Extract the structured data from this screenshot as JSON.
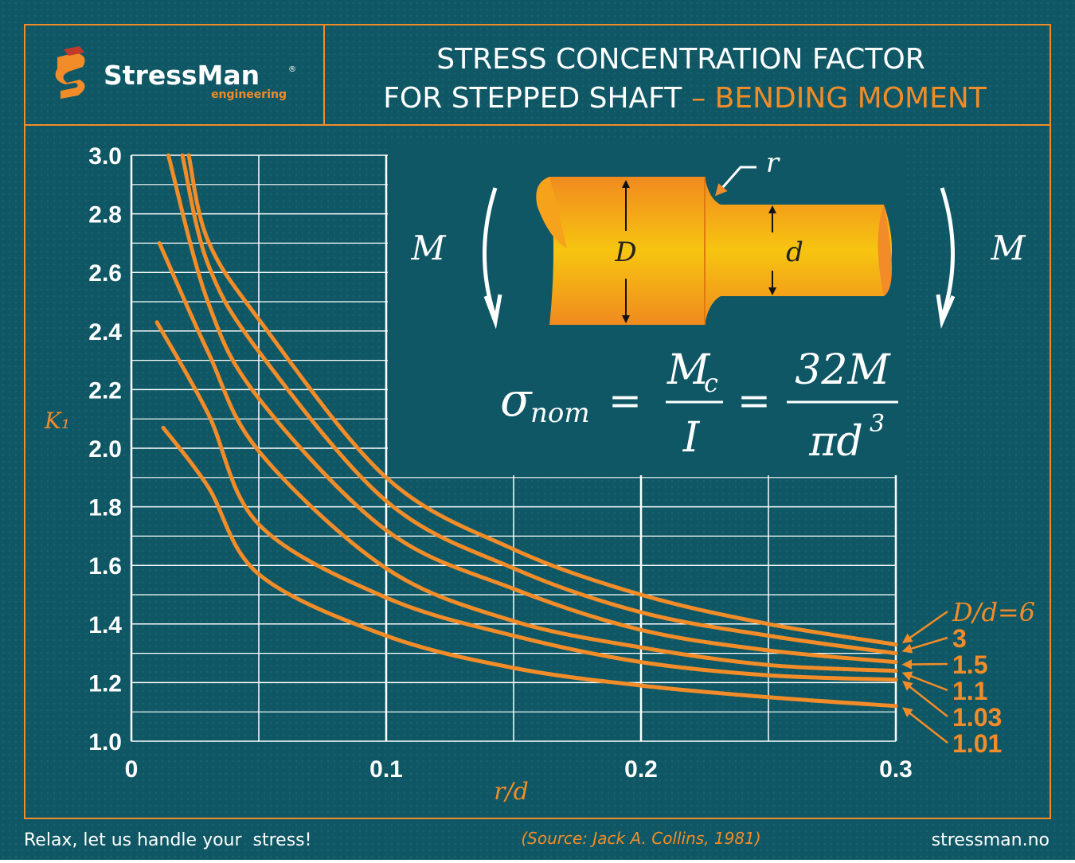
{
  "header": {
    "brand": "StressMan",
    "registered": "®",
    "brand_sub": "engineering",
    "title_line1": "STRESS CONCENTRATION FACTOR",
    "title_line2": "FOR STEPPED SHAFT",
    "title_highlight": "– BENDING MOMENT"
  },
  "diagram": {
    "moment_left": "M",
    "moment_right": "M",
    "big_diameter": "D",
    "small_diameter": "d",
    "radius": "r"
  },
  "formula": {
    "lhs": "σ",
    "lhs_sub": "nom",
    "equals": "=",
    "frac1_num": "M",
    "frac1_num_sub": "c",
    "frac1_den": "I",
    "frac2_num": "32M",
    "frac2_den": "πd",
    "frac2_den_sup": "3"
  },
  "chart_data": {
    "type": "line",
    "xlabel": "r/d",
    "ylabel": "K₁",
    "xlim": [
      0,
      0.3
    ],
    "ylim": [
      1.0,
      3.0
    ],
    "xticks": [
      0,
      0.1,
      0.2,
      0.3
    ],
    "yticks": [
      {
        "value": 1.0,
        "label": "1.0"
      },
      1.2,
      1.4,
      1.6,
      1.8,
      {
        "value": 2.0,
        "label": "2.0"
      },
      2.2,
      2.4,
      2.6,
      2.8,
      {
        "value": 3.0,
        "label": "3.0"
      }
    ],
    "x_minor_ticks": [
      0.05,
      0.15,
      0.25
    ],
    "y_minor_ticks": [
      1.1,
      1.3,
      1.5,
      1.7,
      1.9,
      2.1,
      2.3,
      2.5,
      2.7,
      2.9
    ],
    "grid": true,
    "color": "#f28c28",
    "series": [
      {
        "name": "D/d=6",
        "x": [
          0.0225,
          0.03,
          0.05,
          0.1,
          0.15,
          0.2,
          0.25,
          0.3
        ],
        "values": [
          3.0,
          2.71,
          2.44,
          1.9,
          1.655,
          1.5,
          1.4,
          1.33
        ]
      },
      {
        "name": "3",
        "x": [
          0.02,
          0.03,
          0.05,
          0.1,
          0.15,
          0.2,
          0.25,
          0.3
        ],
        "values": [
          3.0,
          2.63,
          2.33,
          1.82,
          1.59,
          1.44,
          1.36,
          1.3
        ]
      },
      {
        "name": "1.5",
        "x": [
          0.0145,
          0.03,
          0.05,
          0.1,
          0.15,
          0.2,
          0.25,
          0.3
        ],
        "values": [
          3.0,
          2.5,
          2.17,
          1.72,
          1.52,
          1.38,
          1.31,
          1.27
        ]
      },
      {
        "name": "1.1",
        "x": [
          0.011,
          0.03,
          0.05,
          0.1,
          0.15,
          0.2,
          0.25,
          0.3
        ],
        "values": [
          2.7,
          2.33,
          1.99,
          1.59,
          1.41,
          1.32,
          1.26,
          1.24
        ]
      },
      {
        "name": "1.03",
        "x": [
          0.01,
          0.03,
          0.05,
          0.1,
          0.15,
          0.2,
          0.25,
          0.3
        ],
        "values": [
          2.43,
          2.12,
          1.74,
          1.49,
          1.36,
          1.27,
          1.225,
          1.21
        ]
      },
      {
        "name": "1.01",
        "x": [
          0.0125,
          0.03,
          0.05,
          0.1,
          0.15,
          0.2,
          0.25,
          0.3
        ],
        "values": [
          2.07,
          1.87,
          1.57,
          1.36,
          1.25,
          1.19,
          1.15,
          1.12
        ]
      }
    ]
  },
  "footer": {
    "slogan": "Relax, let us handle your  stress!",
    "source": "(Source: Jack A. Collins, 1981)",
    "website": "stressman.no"
  }
}
